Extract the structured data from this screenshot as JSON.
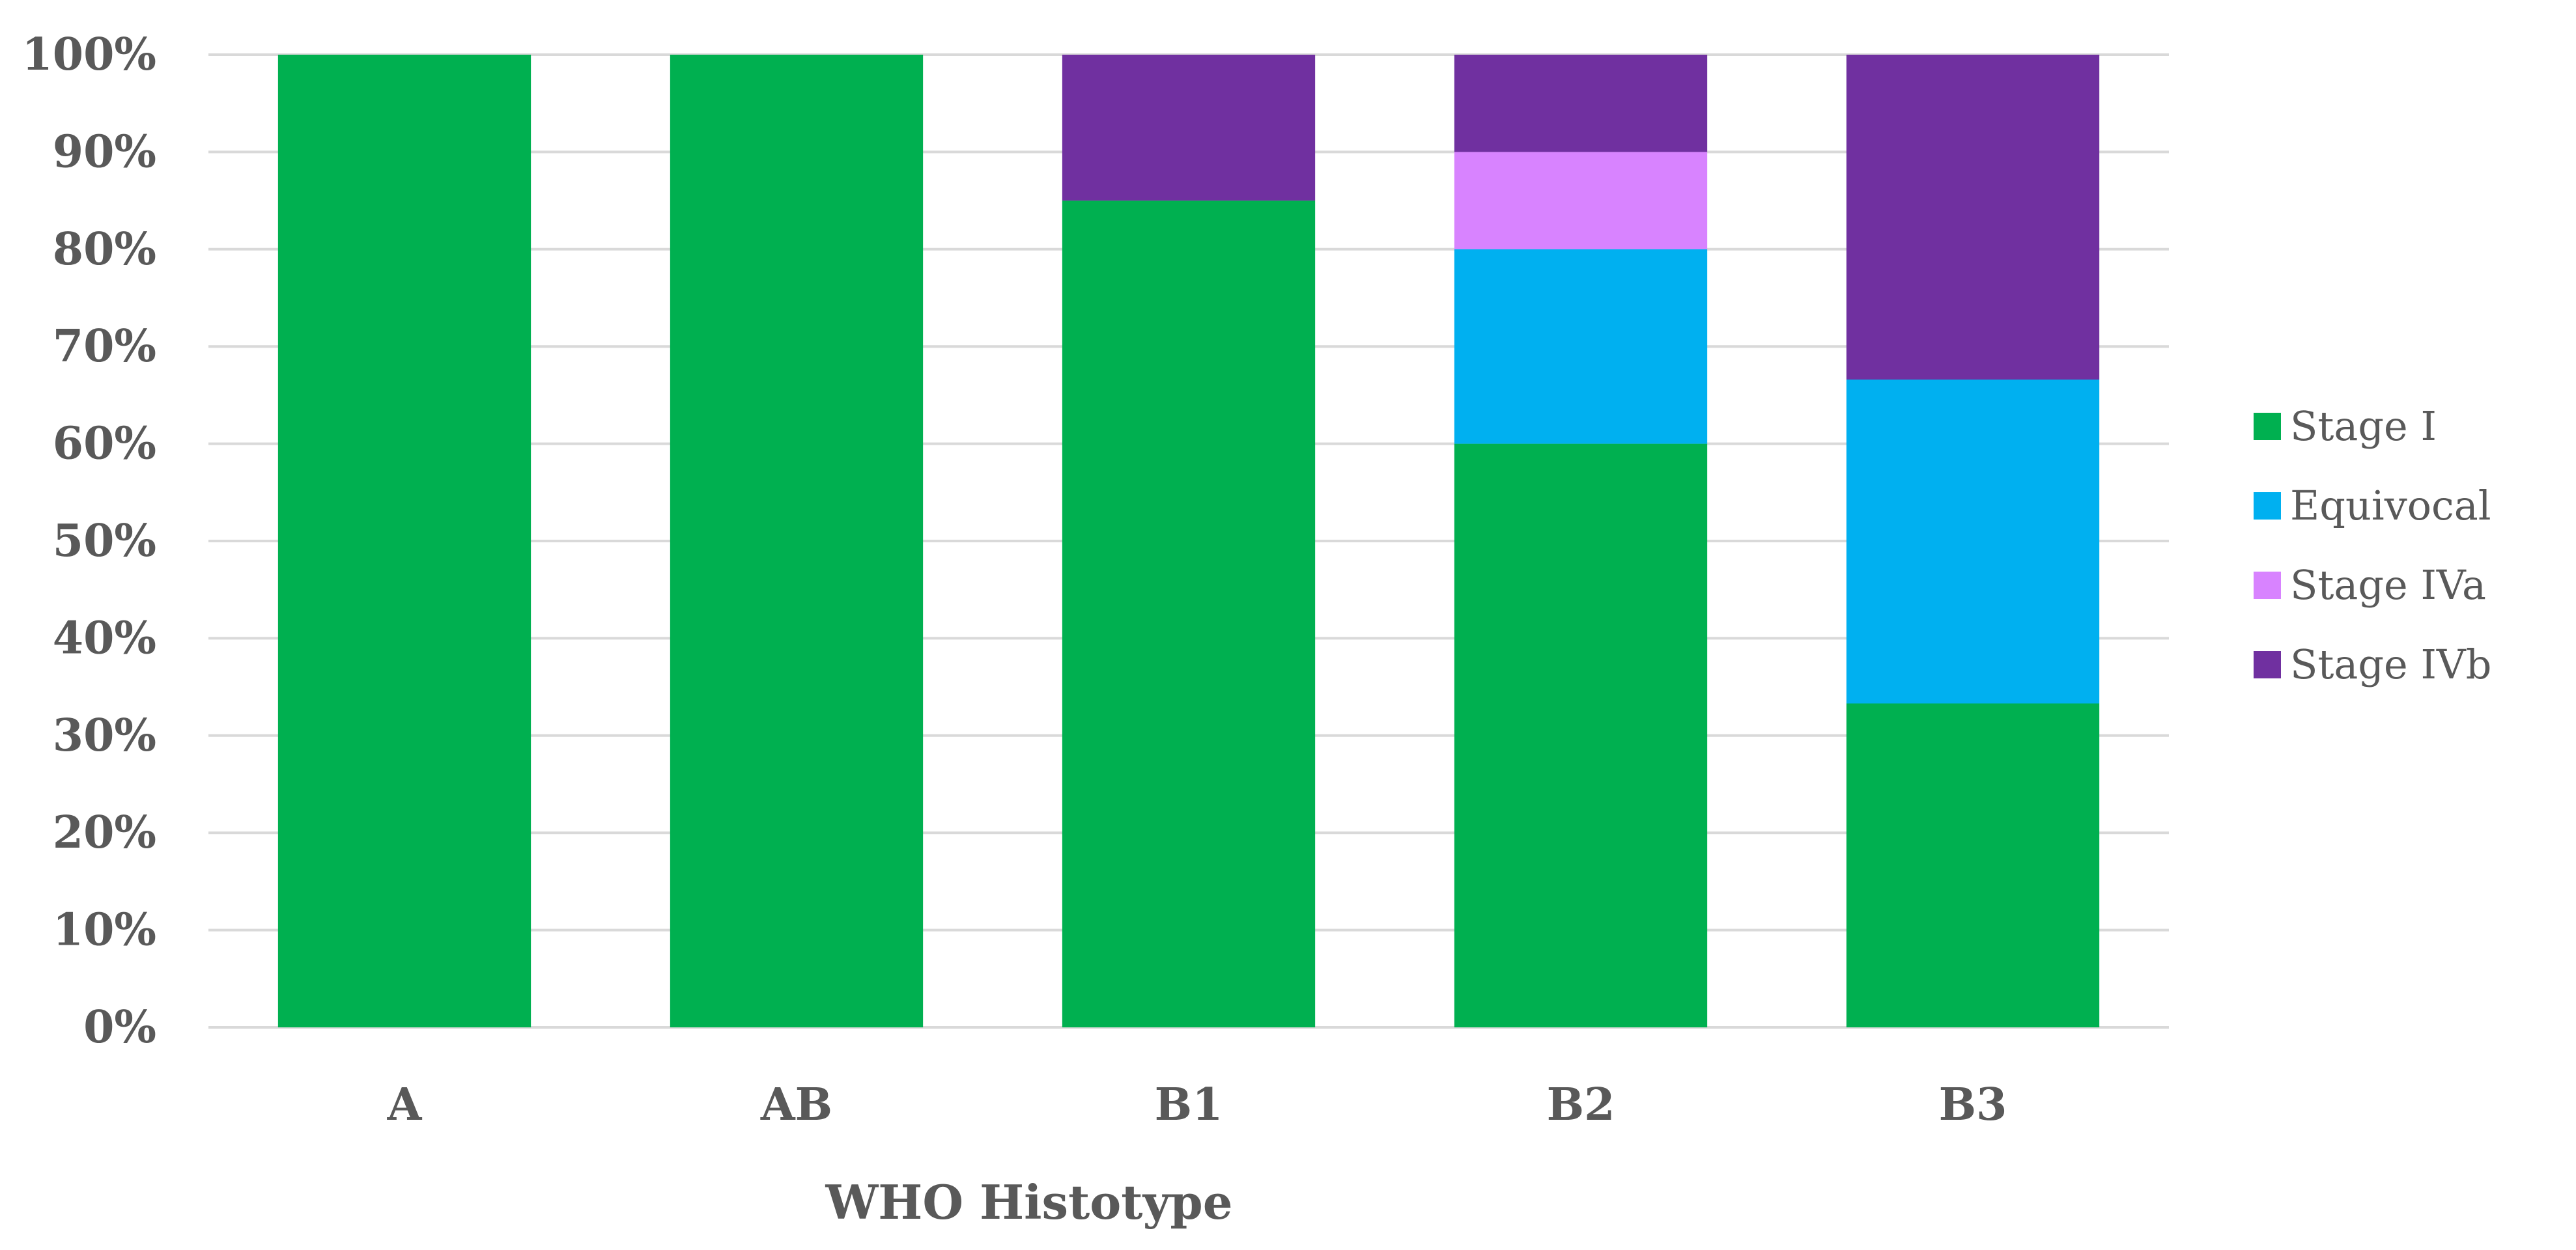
{
  "chart_data": {
    "type": "bar",
    "stacked": true,
    "percent": true,
    "categories": [
      "A",
      "AB",
      "B1",
      "B2",
      "B3"
    ],
    "series": [
      {
        "name": "Stage I",
        "color": "#00B050",
        "values": [
          100,
          100,
          85,
          60,
          33.3
        ]
      },
      {
        "name": "Equivocal",
        "color": "#00B0F0",
        "values": [
          0,
          0,
          0,
          20,
          33.3
        ]
      },
      {
        "name": "Stage IVa",
        "color": "#D883FF",
        "values": [
          0,
          0,
          0,
          10,
          0
        ]
      },
      {
        "name": "Stage IVb",
        "color": "#7030A0",
        "values": [
          0,
          0,
          15,
          10,
          33.4
        ]
      }
    ],
    "yticks": [
      "0%",
      "10%",
      "20%",
      "30%",
      "40%",
      "50%",
      "60%",
      "70%",
      "80%",
      "90%",
      "100%"
    ],
    "ylim": [
      0,
      100
    ],
    "xlabel": "WHO Histotype",
    "ylabel": "",
    "grid": true,
    "legend": "right"
  }
}
